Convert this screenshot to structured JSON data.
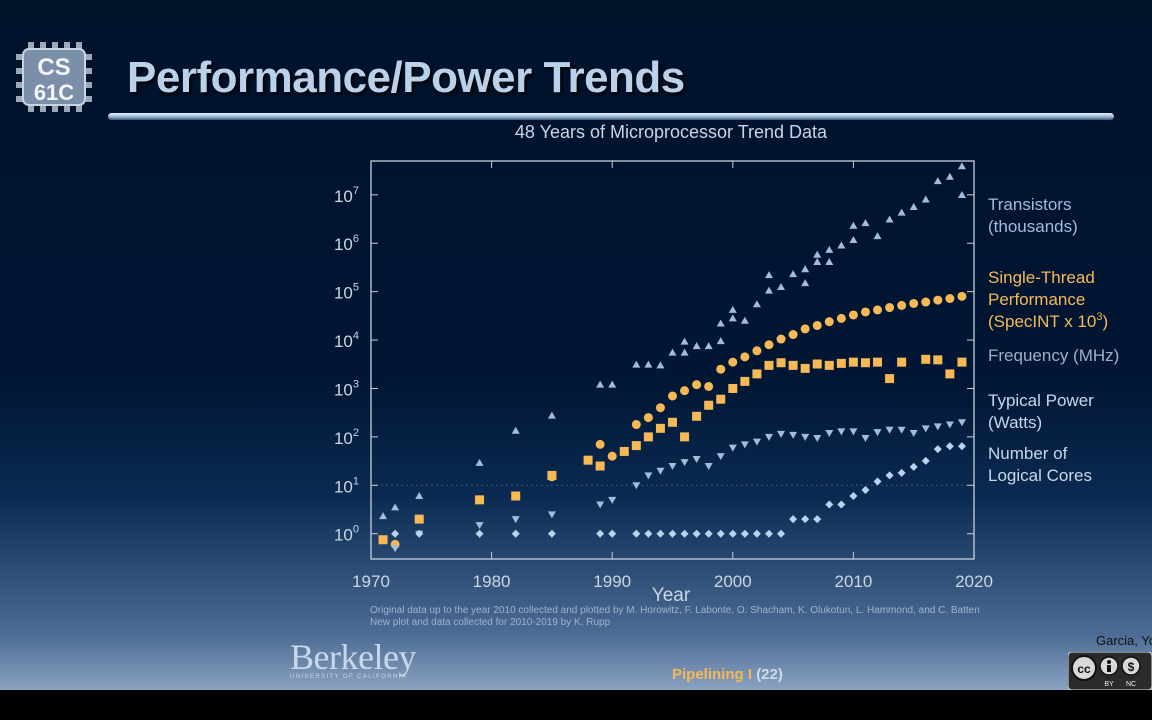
{
  "slide": {
    "logo_text_1": "CS",
    "logo_text_2": "61C",
    "title": "Performance/Power Trends",
    "credits_line1": "Original data up to the year 2010 collected and plotted by M. Horowitz, F. Labonte, O. Shacham, K. Olukotun, L. Hammond, and C. Batten",
    "credits_line2": "New plot and data collected for 2010-2019 by K. Rupp",
    "university_name": "Berkeley",
    "university_sub": "UNIVERSITY OF CALIFORNIA",
    "footer_topic": "Pipelining I",
    "footer_page": "(22)",
    "author": "Garcia, Yo",
    "license_labels": [
      "BY",
      "NC"
    ]
  },
  "colors": {
    "title": "#b9d2ea",
    "transistors": "#9fbedc",
    "performance": "#f7b955",
    "frequency": "#f7b955",
    "power": "#9fbedc",
    "cores": "#b8d4ee",
    "frequency_label": "#9fb0c4"
  },
  "chart_data": {
    "type": "scatter",
    "title": "48 Years of Microprocessor Trend Data",
    "xlabel": "Year",
    "ylabel": "",
    "y_scale": "log",
    "xlim": [
      1970,
      2020
    ],
    "ylim": [
      0.3,
      50000000
    ],
    "x_ticks": [
      "1970",
      "1980",
      "1990",
      "2000",
      "2010",
      "2020"
    ],
    "y_ticks": [
      {
        "base": "10",
        "exp": "0"
      },
      {
        "base": "10",
        "exp": "1"
      },
      {
        "base": "10",
        "exp": "2"
      },
      {
        "base": "10",
        "exp": "3"
      },
      {
        "base": "10",
        "exp": "4"
      },
      {
        "base": "10",
        "exp": "5"
      },
      {
        "base": "10",
        "exp": "6"
      },
      {
        "base": "10",
        "exp": "7"
      }
    ],
    "gridlines": [
      10
    ],
    "legend": [
      {
        "label": "Transistors",
        "label2": "(thousands)"
      },
      {
        "label": "Single-Thread",
        "label2": "Performance",
        "label3": "(SpecINT x 10",
        "label3_sup": "3",
        "label3_end": ")"
      },
      {
        "label": "Frequency (MHz)"
      },
      {
        "label": "Typical Power",
        "label2": "(Watts)"
      },
      {
        "label": "Number of",
        "label2": "Logical Cores"
      }
    ],
    "series": [
      {
        "name": "Transistors (thousands)",
        "marker": "triangle-up",
        "points": [
          [
            1971,
            2.3
          ],
          [
            1972,
            3.5
          ],
          [
            1974,
            6
          ],
          [
            1979,
            29
          ],
          [
            1982,
            134
          ],
          [
            1985,
            275
          ],
          [
            1989,
            1200
          ],
          [
            1990,
            1200
          ],
          [
            1992,
            3100
          ],
          [
            1993,
            3100
          ],
          [
            1994,
            3000
          ],
          [
            1995,
            5500
          ],
          [
            1996,
            5500
          ],
          [
            1996,
            9300
          ],
          [
            1997,
            7500
          ],
          [
            1998,
            7500
          ],
          [
            1999,
            9500
          ],
          [
            1999,
            22000
          ],
          [
            2000,
            28000
          ],
          [
            2000,
            42000
          ],
          [
            2001,
            25000
          ],
          [
            2002,
            55000
          ],
          [
            2003,
            105000
          ],
          [
            2003,
            220000
          ],
          [
            2004,
            125000
          ],
          [
            2005,
            230000
          ],
          [
            2006,
            290000
          ],
          [
            2006,
            150000
          ],
          [
            2007,
            410000
          ],
          [
            2007,
            580000
          ],
          [
            2008,
            730000
          ],
          [
            2008,
            410000
          ],
          [
            2009,
            900000
          ],
          [
            2010,
            2300000
          ],
          [
            2010,
            1170000
          ],
          [
            2011,
            2600000
          ],
          [
            2012,
            1400000
          ],
          [
            2013,
            3100000
          ],
          [
            2014,
            4300000
          ],
          [
            2015,
            5600000
          ],
          [
            2016,
            8000000
          ],
          [
            2017,
            19200000
          ],
          [
            2018,
            23600000
          ],
          [
            2019,
            9900000
          ],
          [
            2019,
            39000000
          ]
        ]
      },
      {
        "name": "Single-Thread Performance (SpecINT x 10^3)",
        "marker": "circle",
        "points": [
          [
            1972,
            0.6
          ],
          [
            1985,
            15
          ],
          [
            1989,
            70
          ],
          [
            1990,
            40
          ],
          [
            1992,
            180
          ],
          [
            1993,
            250
          ],
          [
            1994,
            400
          ],
          [
            1995,
            700
          ],
          [
            1996,
            900
          ],
          [
            1997,
            1200
          ],
          [
            1998,
            1100
          ],
          [
            1999,
            2500
          ],
          [
            2000,
            3500
          ],
          [
            2001,
            4500
          ],
          [
            2002,
            6000
          ],
          [
            2003,
            8000
          ],
          [
            2004,
            10500
          ],
          [
            2005,
            13000
          ],
          [
            2006,
            17000
          ],
          [
            2007,
            20000
          ],
          [
            2008,
            24000
          ],
          [
            2009,
            28000
          ],
          [
            2010,
            33000
          ],
          [
            2011,
            38000
          ],
          [
            2012,
            42000
          ],
          [
            2013,
            47000
          ],
          [
            2014,
            52000
          ],
          [
            2015,
            57000
          ],
          [
            2016,
            61000
          ],
          [
            2017,
            67000
          ],
          [
            2018,
            72000
          ],
          [
            2019,
            80000
          ]
        ]
      },
      {
        "name": "Frequency (MHz)",
        "marker": "square",
        "points": [
          [
            1971,
            0.75
          ],
          [
            1974,
            2
          ],
          [
            1979,
            5
          ],
          [
            1982,
            6
          ],
          [
            1985,
            16
          ],
          [
            1988,
            33
          ],
          [
            1989,
            25
          ],
          [
            1991,
            50
          ],
          [
            1992,
            66
          ],
          [
            1993,
            100
          ],
          [
            1994,
            150
          ],
          [
            1995,
            200
          ],
          [
            1996,
            100
          ],
          [
            1997,
            266
          ],
          [
            1998,
            450
          ],
          [
            1999,
            600
          ],
          [
            2000,
            1000
          ],
          [
            2001,
            1400
          ],
          [
            2002,
            2000
          ],
          [
            2003,
            3000
          ],
          [
            2004,
            3400
          ],
          [
            2005,
            3000
          ],
          [
            2006,
            2600
          ],
          [
            2007,
            3200
          ],
          [
            2008,
            3000
          ],
          [
            2009,
            3300
          ],
          [
            2010,
            3500
          ],
          [
            2011,
            3400
          ],
          [
            2012,
            3500
          ],
          [
            2013,
            1600
          ],
          [
            2014,
            3500
          ],
          [
            2016,
            4000
          ],
          [
            2017,
            3900
          ],
          [
            2018,
            2000
          ],
          [
            2019,
            3500
          ]
        ]
      },
      {
        "name": "Typical Power (Watts)",
        "marker": "triangle-down",
        "points": [
          [
            1972,
            0.5
          ],
          [
            1974,
            1
          ],
          [
            1979,
            1.5
          ],
          [
            1982,
            2
          ],
          [
            1985,
            2.5
          ],
          [
            1989,
            4
          ],
          [
            1990,
            5
          ],
          [
            1992,
            10
          ],
          [
            1993,
            16
          ],
          [
            1994,
            20
          ],
          [
            1995,
            25
          ],
          [
            1996,
            30
          ],
          [
            1997,
            35
          ],
          [
            1998,
            25
          ],
          [
            1999,
            40
          ],
          [
            2000,
            60
          ],
          [
            2001,
            70
          ],
          [
            2002,
            80
          ],
          [
            2003,
            100
          ],
          [
            2004,
            115
          ],
          [
            2005,
            110
          ],
          [
            2006,
            100
          ],
          [
            2007,
            95
          ],
          [
            2008,
            120
          ],
          [
            2009,
            130
          ],
          [
            2010,
            130
          ],
          [
            2011,
            95
          ],
          [
            2012,
            125
          ],
          [
            2013,
            140
          ],
          [
            2014,
            140
          ],
          [
            2015,
            120
          ],
          [
            2016,
            150
          ],
          [
            2017,
            165
          ],
          [
            2018,
            180
          ],
          [
            2019,
            200
          ]
        ]
      },
      {
        "name": "Number of Logical Cores",
        "marker": "diamond",
        "points": [
          [
            1972,
            1
          ],
          [
            1974,
            1
          ],
          [
            1979,
            1
          ],
          [
            1982,
            1
          ],
          [
            1985,
            1
          ],
          [
            1989,
            1
          ],
          [
            1990,
            1
          ],
          [
            1992,
            1
          ],
          [
            1993,
            1
          ],
          [
            1994,
            1
          ],
          [
            1995,
            1
          ],
          [
            1996,
            1
          ],
          [
            1997,
            1
          ],
          [
            1998,
            1
          ],
          [
            1999,
            1
          ],
          [
            2000,
            1
          ],
          [
            2001,
            1
          ],
          [
            2002,
            1
          ],
          [
            2003,
            1
          ],
          [
            2004,
            1
          ],
          [
            2005,
            2
          ],
          [
            2006,
            2
          ],
          [
            2007,
            2
          ],
          [
            2008,
            4
          ],
          [
            2009,
            4
          ],
          [
            2010,
            6
          ],
          [
            2011,
            8
          ],
          [
            2012,
            12
          ],
          [
            2013,
            16
          ],
          [
            2014,
            18
          ],
          [
            2015,
            24
          ],
          [
            2016,
            32
          ],
          [
            2017,
            56
          ],
          [
            2018,
            64
          ],
          [
            2019,
            64
          ]
        ]
      }
    ]
  }
}
